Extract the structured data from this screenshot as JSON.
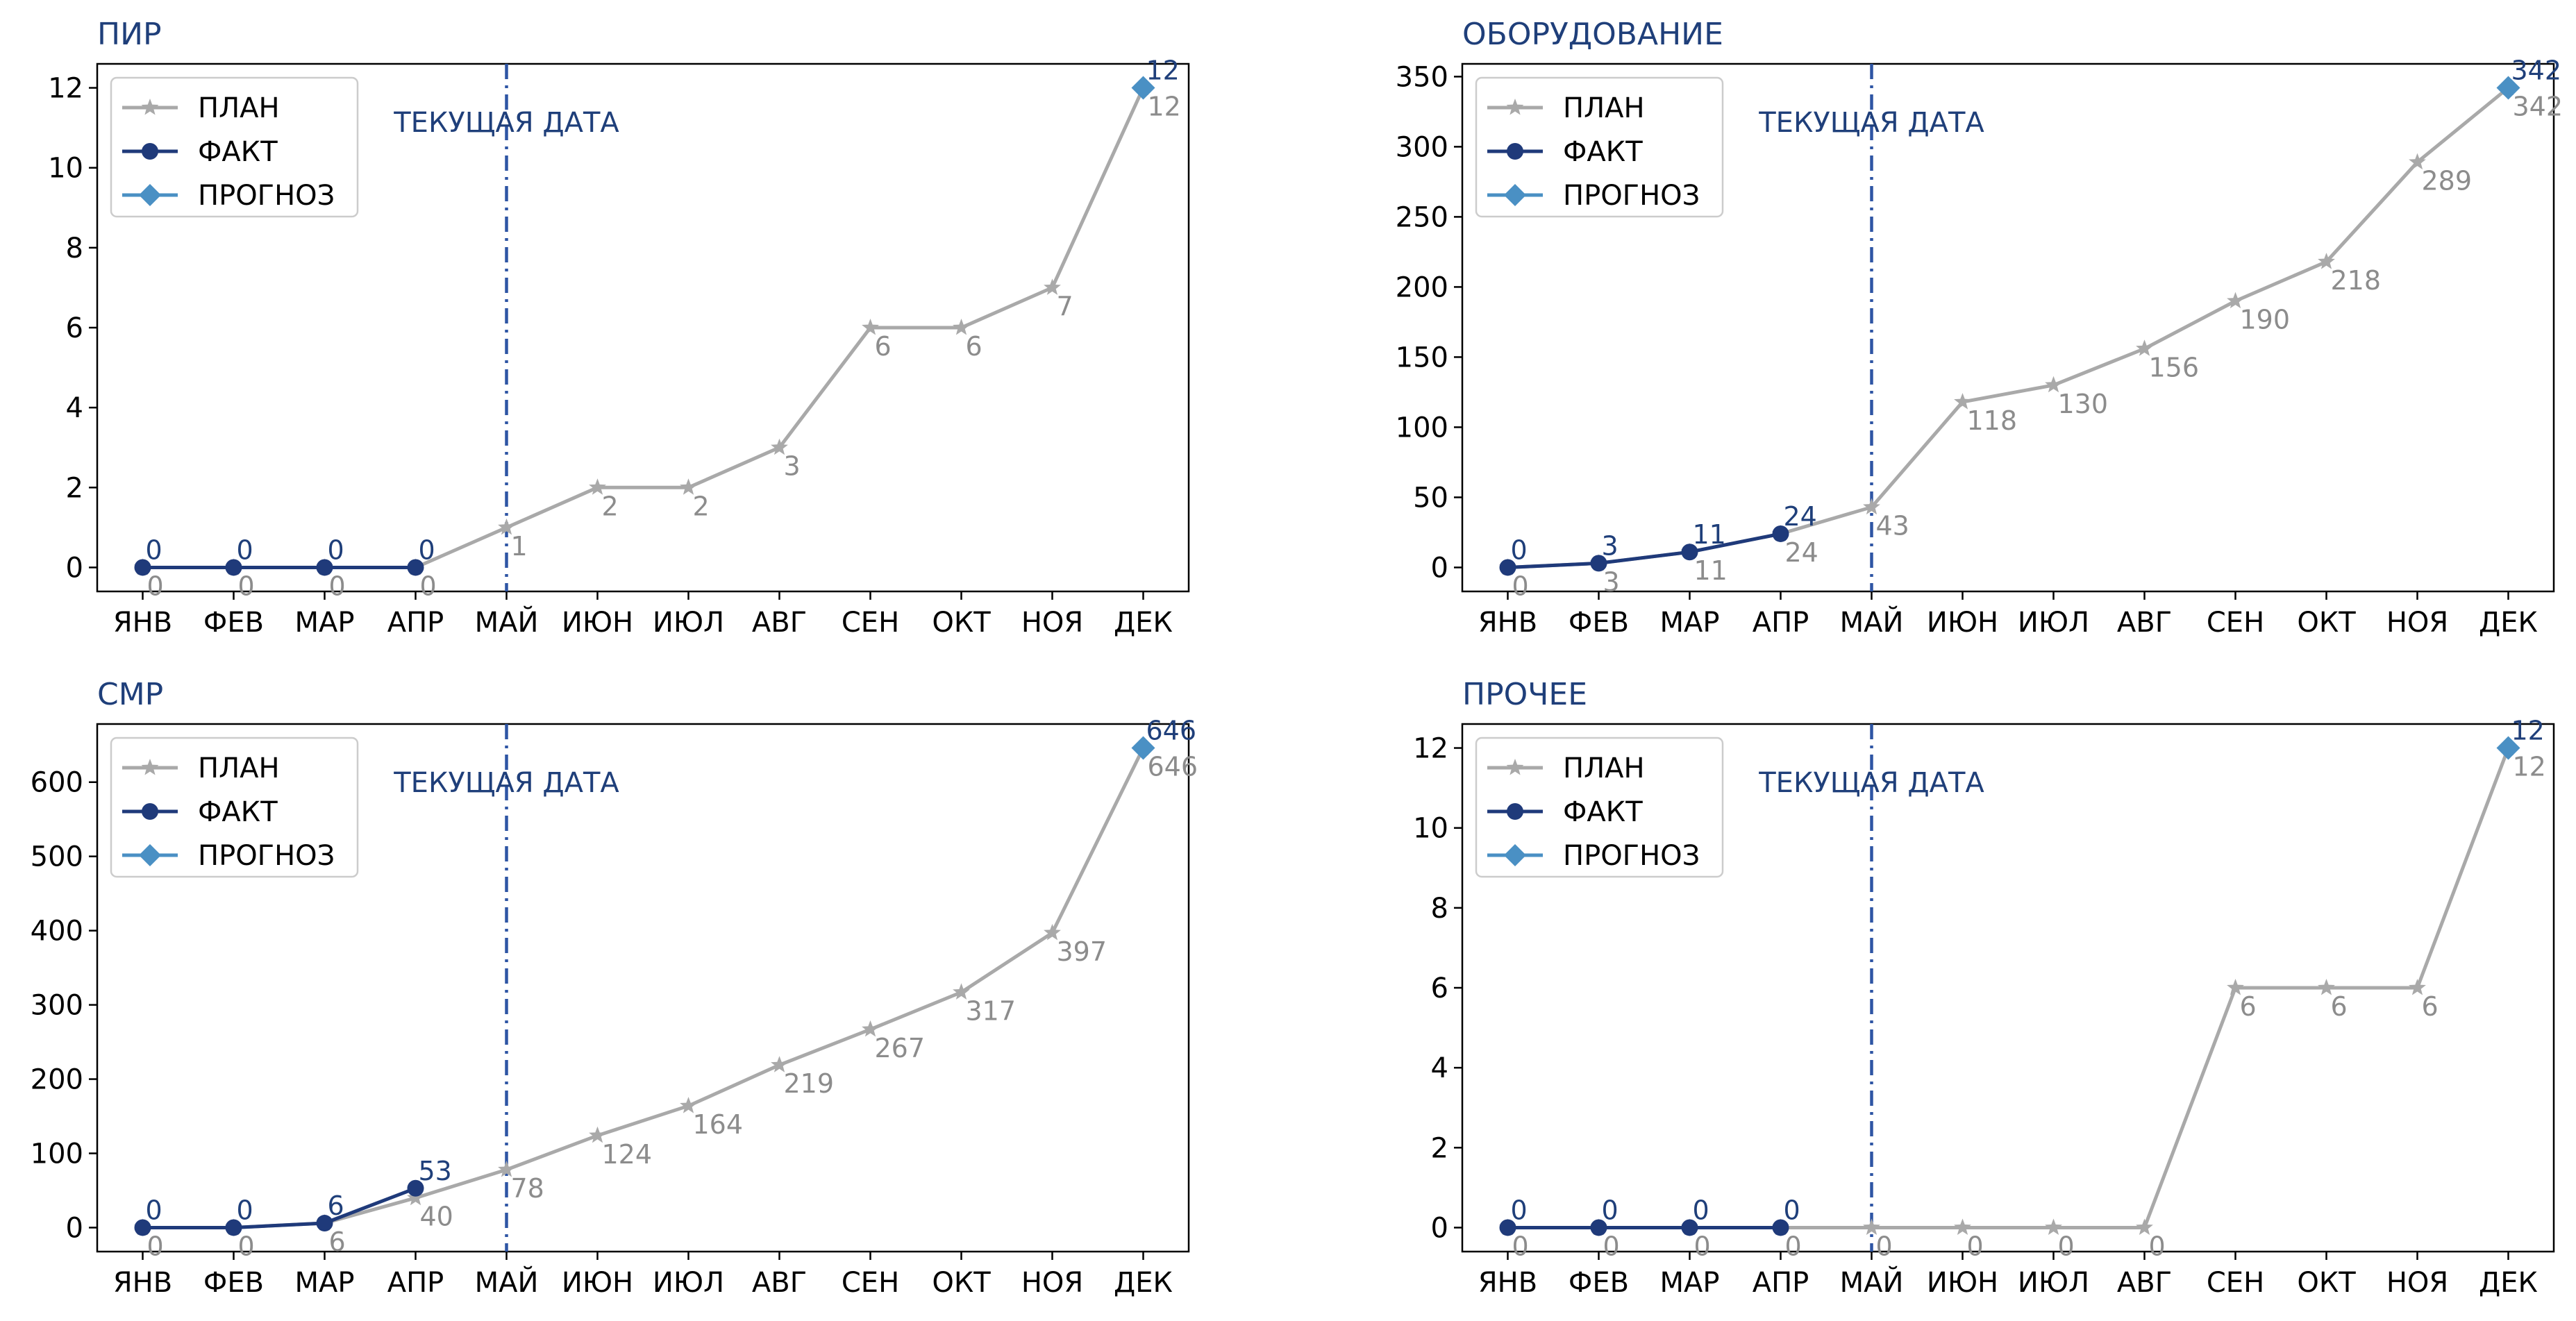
{
  "months": [
    "ЯНВ",
    "ФЕВ",
    "МАР",
    "АПР",
    "МАЙ",
    "ИЮН",
    "ИЮЛ",
    "АВГ",
    "СЕН",
    "ОКТ",
    "НОЯ",
    "ДЕК"
  ],
  "legend": {
    "plan": "ПЛАН",
    "fact": "ФАКТ",
    "forecast": "ПРОГНОЗ"
  },
  "current_date_label": "ТЕКУЩАЯ ДАТА",
  "colors": {
    "plan": "#a9a9a9",
    "fact": "#1f3a7a",
    "forecast": "#4a90c4",
    "current_line": "#2e55a4",
    "title": "#1f3f7a"
  },
  "chart_data": [
    {
      "type": "line",
      "title": "ПИР",
      "categories": [
        "ЯНВ",
        "ФЕВ",
        "МАР",
        "АПР",
        "МАЙ",
        "ИЮН",
        "ИЮЛ",
        "АВГ",
        "СЕН",
        "ОКТ",
        "НОЯ",
        "ДЕК"
      ],
      "ylim": [
        -0.6,
        12.6
      ],
      "yticks": [
        0,
        2,
        4,
        6,
        8,
        10,
        12
      ],
      "current_index": 4,
      "legend_position": "top-left",
      "series": [
        {
          "name": "ПЛАН",
          "values": [
            0,
            0,
            0,
            0,
            1,
            2,
            2,
            3,
            6,
            6,
            7,
            12
          ]
        },
        {
          "name": "ФАКТ",
          "values": [
            0,
            0,
            0,
            0,
            null,
            null,
            null,
            null,
            null,
            null,
            null,
            null
          ]
        },
        {
          "name": "ПРОГНОЗ",
          "values": [
            null,
            null,
            null,
            null,
            null,
            null,
            null,
            null,
            null,
            null,
            null,
            12
          ]
        }
      ]
    },
    {
      "type": "line",
      "title": "ОБОРУДОВАНИЕ",
      "categories": [
        "ЯНВ",
        "ФЕВ",
        "МАР",
        "АПР",
        "МАЙ",
        "ИЮН",
        "ИЮЛ",
        "АВГ",
        "СЕН",
        "ОКТ",
        "НОЯ",
        "ДЕК"
      ],
      "ylim": [
        -17.1,
        359.1
      ],
      "yticks": [
        0,
        50,
        100,
        150,
        200,
        250,
        300,
        350
      ],
      "current_index": 4,
      "legend_position": "top-left",
      "series": [
        {
          "name": "ПЛАН",
          "values": [
            0,
            3,
            11,
            24,
            43,
            118,
            130,
            156,
            190,
            218,
            289,
            342
          ]
        },
        {
          "name": "ФАКТ",
          "values": [
            0,
            3,
            11,
            24,
            null,
            null,
            null,
            null,
            null,
            null,
            null,
            null
          ]
        },
        {
          "name": "ПРОГНОЗ",
          "values": [
            null,
            null,
            null,
            null,
            null,
            null,
            null,
            null,
            null,
            null,
            null,
            342
          ]
        }
      ]
    },
    {
      "type": "line",
      "title": "СМР",
      "categories": [
        "ЯНВ",
        "ФЕВ",
        "МАР",
        "АПР",
        "МАЙ",
        "ИЮН",
        "ИЮЛ",
        "АВГ",
        "СЕН",
        "ОКТ",
        "НОЯ",
        "ДЕК"
      ],
      "ylim": [
        -32.3,
        678.3
      ],
      "yticks": [
        0,
        100,
        200,
        300,
        400,
        500,
        600
      ],
      "current_index": 4,
      "legend_position": "top-left",
      "series": [
        {
          "name": "ПЛАН",
          "values": [
            0,
            0,
            6,
            40,
            78,
            124,
            164,
            219,
            267,
            317,
            397,
            646
          ]
        },
        {
          "name": "ФАКТ",
          "values": [
            0,
            0,
            6,
            53,
            null,
            null,
            null,
            null,
            null,
            null,
            null,
            null
          ]
        },
        {
          "name": "ПРОГНОЗ",
          "values": [
            null,
            null,
            null,
            null,
            null,
            null,
            null,
            null,
            null,
            null,
            null,
            646
          ]
        }
      ]
    },
    {
      "type": "line",
      "title": "ПРОЧЕЕ",
      "categories": [
        "ЯНВ",
        "ФЕВ",
        "МАР",
        "АПР",
        "МАЙ",
        "ИЮН",
        "ИЮЛ",
        "АВГ",
        "СЕН",
        "ОКТ",
        "НОЯ",
        "ДЕК"
      ],
      "ylim": [
        -0.6,
        12.6
      ],
      "yticks": [
        0,
        2,
        4,
        6,
        8,
        10,
        12
      ],
      "current_index": 4,
      "legend_position": "top-left",
      "series": [
        {
          "name": "ПЛАН",
          "values": [
            0,
            0,
            0,
            0,
            0,
            0,
            0,
            0,
            6,
            6,
            6,
            12
          ]
        },
        {
          "name": "ФАКТ",
          "values": [
            0,
            0,
            0,
            0,
            null,
            null,
            null,
            null,
            null,
            null,
            null,
            null
          ]
        },
        {
          "name": "ПРОГНОЗ",
          "values": [
            null,
            null,
            null,
            null,
            null,
            null,
            null,
            null,
            null,
            null,
            null,
            12
          ]
        }
      ]
    }
  ]
}
